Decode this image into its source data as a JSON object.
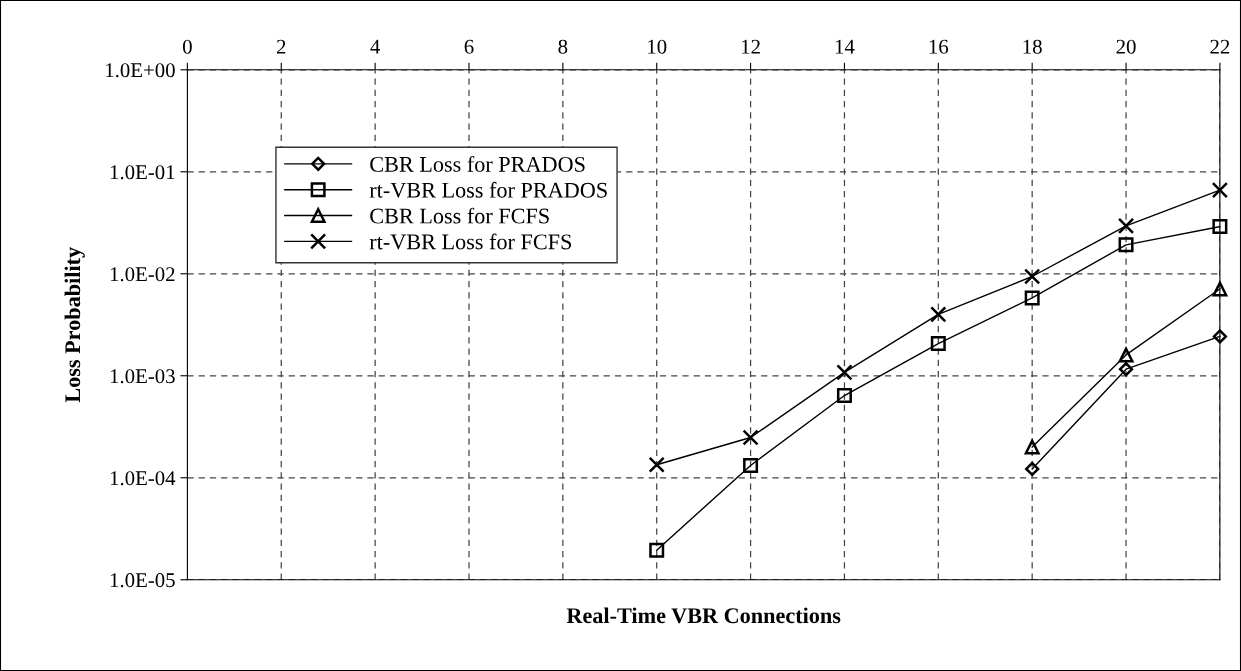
{
  "chart_data": {
    "type": "line",
    "xlabel": "Real-Time VBR Connections",
    "ylabel": "Loss Probability",
    "xlim": [
      0,
      22
    ],
    "xticks": [
      0,
      2,
      4,
      6,
      8,
      10,
      12,
      14,
      16,
      18,
      20,
      22
    ],
    "log": "y",
    "ylim": [
      1e-05,
      1
    ],
    "yticks": [
      {
        "value": 1e-05,
        "label": "1.0E-05"
      },
      {
        "value": 0.0001,
        "label": "1.0E-04"
      },
      {
        "value": 0.001,
        "label": "1.0E-03"
      },
      {
        "value": 0.01,
        "label": "1.0E-02"
      },
      {
        "value": 0.1,
        "label": "1.0E-01"
      },
      {
        "value": 1,
        "label": "1.0E+00"
      }
    ],
    "grid": true,
    "legend": "top left",
    "line_style": "solid",
    "x": [
      10,
      12,
      14,
      16,
      18,
      20,
      22
    ],
    "series": [
      {
        "name": "CBR Loss for PRADOS",
        "color": "#000000",
        "marker": "diamond",
        "values": [
          null,
          null,
          null,
          null,
          0.000122,
          0.00116,
          0.00243
        ]
      },
      {
        "name": "rt-VBR Loss for PRADOS",
        "color": "#000000",
        "marker": "square",
        "values": [
          1.95e-05,
          0.000132,
          0.00064,
          0.00207,
          0.0058,
          0.0192,
          0.029
        ]
      },
      {
        "name": "CBR Loss for FCFS",
        "color": "#000000",
        "marker": "triangle",
        "values": [
          null,
          null,
          null,
          null,
          0.0002,
          0.0016,
          0.0071
        ]
      },
      {
        "name": "rt-VBR Loss for FCFS",
        "color": "#000000",
        "marker": "cross",
        "values": [
          0.000134,
          0.000248,
          0.00108,
          0.004,
          0.0094,
          0.0295,
          0.066
        ]
      }
    ]
  }
}
